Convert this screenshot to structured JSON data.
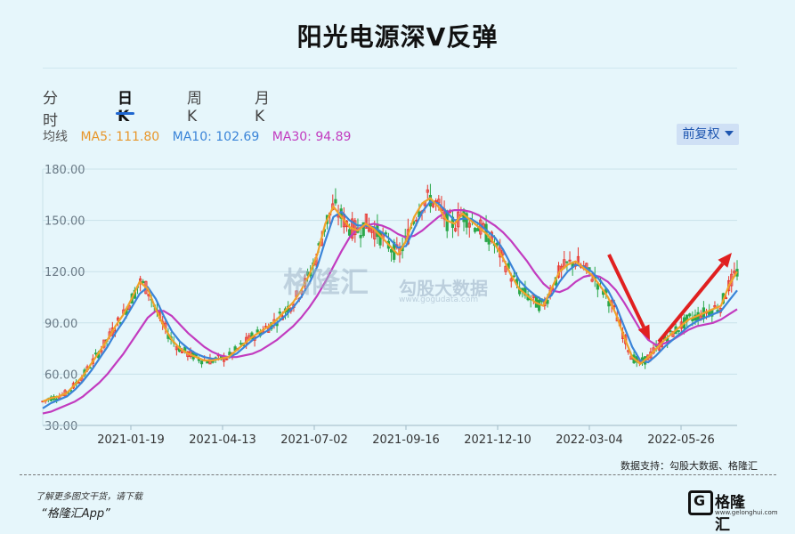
{
  "title": "阳光电源深V反弹",
  "tabs": [
    "分时",
    "日K",
    "周K",
    "月K"
  ],
  "active_tab": "日K",
  "ma": {
    "label": "均线",
    "ma5": "MA5: 111.80",
    "ma10": "MA10: 102.69",
    "ma30": "MA30: 94.89"
  },
  "adjust_button": "前复权",
  "watermark": {
    "left": "格隆汇",
    "right": "勾股大数据",
    "right_url": "www.gogudata.com"
  },
  "source": "数据支持：勾股大数据、格隆汇",
  "footer": {
    "line1": "了解更多图文干货，请下载",
    "line2": "“格隆汇App”"
  },
  "logo": {
    "mark": "G",
    "name": "格隆汇",
    "url": "www.gelonghui.com"
  },
  "colors": {
    "up": "#e8342b",
    "down": "#2ba84a",
    "ma5": "#f0a22a",
    "ma10": "#3a84d8",
    "ma30": "#c23bbf",
    "arrow": "#e02020"
  },
  "chart_data": {
    "type": "line",
    "y_ticks": [
      "180.00",
      "150.00",
      "120.00",
      "90.00",
      "60.00",
      "30.00"
    ],
    "ylim": [
      30,
      180
    ],
    "x_ticks": [
      "2021-01-19",
      "2021-04-13",
      "2021-07-02",
      "2021-09-16",
      "2021-12-10",
      "2022-03-04",
      "2022-05-26"
    ],
    "grid": true,
    "series": [
      {
        "name": "MA5",
        "color": "#f0a22a",
        "values": [
          44,
          46,
          47,
          49,
          54,
          59,
          66,
          73,
          80,
          88,
          95,
          104,
          114,
          110,
          98,
          88,
          80,
          75,
          72,
          70,
          68,
          68,
          69,
          70,
          74,
          78,
          82,
          85,
          88,
          92,
          97,
          102,
          109,
          118,
          130,
          148,
          158,
          152,
          146,
          144,
          148,
          145,
          140,
          135,
          130,
          138,
          152,
          160,
          163,
          158,
          150,
          148,
          154,
          150,
          146,
          142,
          136,
          128,
          118,
          110,
          106,
          102,
          100,
          110,
          120,
          124,
          126,
          122,
          118,
          112,
          105,
          95,
          82,
          70,
          66,
          70,
          75,
          80,
          84,
          88,
          92,
          94,
          96,
          98,
          100,
          112,
          120
        ]
      },
      {
        "name": "MA10",
        "color": "#3a84d8",
        "values": [
          40,
          43,
          45,
          47,
          51,
          56,
          62,
          69,
          76,
          84,
          91,
          99,
          107,
          111,
          104,
          94,
          85,
          79,
          75,
          72,
          70,
          69,
          69,
          70,
          72,
          76,
          80,
          83,
          86,
          90,
          94,
          99,
          105,
          113,
          123,
          138,
          152,
          155,
          150,
          147,
          147,
          146,
          143,
          139,
          134,
          135,
          145,
          155,
          161,
          160,
          155,
          150,
          151,
          151,
          148,
          144,
          140,
          133,
          124,
          115,
          110,
          106,
          103,
          106,
          114,
          120,
          124,
          123,
          120,
          115,
          109,
          100,
          88,
          76,
          68,
          67,
          71,
          76,
          80,
          84,
          88,
          91,
          93,
          95,
          97,
          103,
          109
        ]
      },
      {
        "name": "MA30",
        "color": "#c23bbf",
        "values": [
          37,
          38,
          40,
          42,
          44,
          47,
          51,
          55,
          60,
          66,
          72,
          79,
          86,
          93,
          97,
          97,
          94,
          89,
          84,
          80,
          76,
          73,
          71,
          70,
          70,
          71,
          72,
          74,
          77,
          80,
          84,
          88,
          93,
          99,
          106,
          114,
          123,
          132,
          140,
          145,
          147,
          148,
          147,
          145,
          142,
          140,
          141,
          144,
          148,
          152,
          155,
          156,
          156,
          155,
          153,
          150,
          147,
          143,
          138,
          132,
          126,
          119,
          113,
          109,
          108,
          110,
          114,
          117,
          118,
          117,
          114,
          109,
          102,
          94,
          86,
          80,
          77,
          78,
          80,
          83,
          86,
          88,
          89,
          90,
          92,
          95,
          98
        ]
      }
    ],
    "annotations": [
      "down arrow into 2022-04 low",
      "up arrow rebound after 2022-05"
    ]
  }
}
